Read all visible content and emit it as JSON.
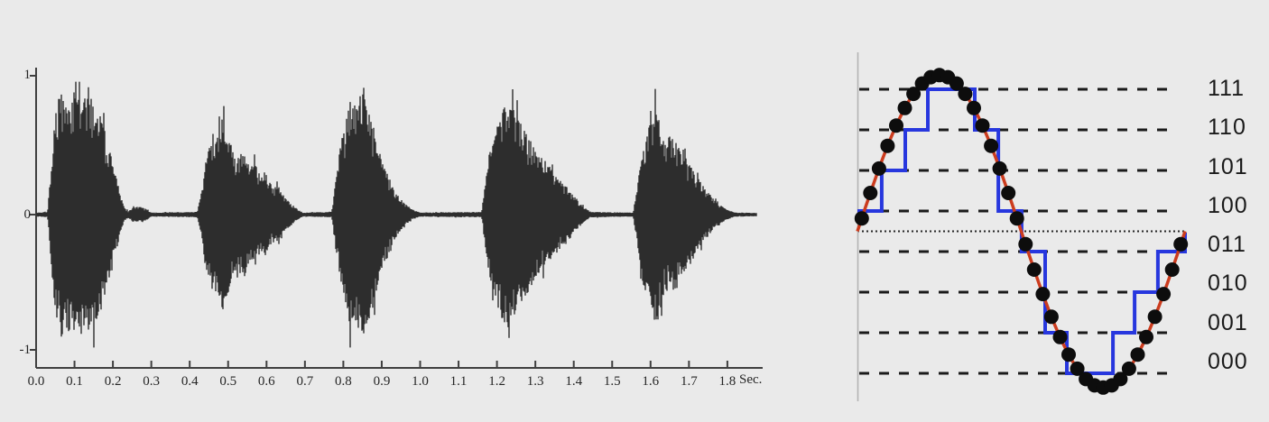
{
  "background": "#eaeaea",
  "chart_data": [
    {
      "id": "speech-waveform",
      "type": "area",
      "title": "",
      "xlabel": "Sec.",
      "ylabel": "",
      "x_unit_label": "Sec.",
      "x_tick_labels": [
        "0.0",
        "0.1",
        "0.2",
        "0.3",
        "0.4",
        "0.5",
        "0.6",
        "0.7",
        "0.8",
        "0.9",
        "1.0",
        "1.1",
        "1.2",
        "1.3",
        "1.4",
        "1.5",
        "1.6",
        "1.7",
        "1.8"
      ],
      "y_tick_labels": [
        "1",
        "0",
        "-1"
      ],
      "ylim": [
        -1,
        1
      ],
      "xlim_seconds": [
        0,
        1.9
      ],
      "grid": false,
      "waveform_color": "#2d2d2d",
      "axis_color": "#3f3f3f",
      "envelope_breakpoints": [
        [
          0.0,
          0.012
        ],
        [
          0.03,
          0.02
        ],
        [
          0.042,
          0.45
        ],
        [
          0.05,
          0.78
        ],
        [
          0.065,
          0.9
        ],
        [
          0.085,
          0.85
        ],
        [
          0.105,
          0.92
        ],
        [
          0.125,
          0.85
        ],
        [
          0.145,
          0.88
        ],
        [
          0.16,
          0.78
        ],
        [
          0.175,
          0.65
        ],
        [
          0.19,
          0.5
        ],
        [
          0.205,
          0.32
        ],
        [
          0.218,
          0.15
        ],
        [
          0.23,
          0.05
        ],
        [
          0.24,
          0.025
        ],
        [
          0.255,
          0.055
        ],
        [
          0.275,
          0.06
        ],
        [
          0.29,
          0.035
        ],
        [
          0.3,
          0.015
        ],
        [
          0.42,
          0.02
        ],
        [
          0.432,
          0.18
        ],
        [
          0.445,
          0.42
        ],
        [
          0.458,
          0.6
        ],
        [
          0.47,
          0.55
        ],
        [
          0.483,
          0.72
        ],
        [
          0.495,
          0.62
        ],
        [
          0.51,
          0.5
        ],
        [
          0.525,
          0.42
        ],
        [
          0.54,
          0.48
        ],
        [
          0.555,
          0.35
        ],
        [
          0.57,
          0.38
        ],
        [
          0.585,
          0.28
        ],
        [
          0.6,
          0.3
        ],
        [
          0.615,
          0.2
        ],
        [
          0.632,
          0.22
        ],
        [
          0.648,
          0.12
        ],
        [
          0.665,
          0.08
        ],
        [
          0.68,
          0.04
        ],
        [
          0.695,
          0.015
        ],
        [
          0.77,
          0.02
        ],
        [
          0.782,
          0.3
        ],
        [
          0.795,
          0.55
        ],
        [
          0.808,
          0.72
        ],
        [
          0.82,
          0.85
        ],
        [
          0.835,
          0.8
        ],
        [
          0.848,
          0.9
        ],
        [
          0.862,
          0.82
        ],
        [
          0.875,
          0.7
        ],
        [
          0.888,
          0.55
        ],
        [
          0.9,
          0.42
        ],
        [
          0.915,
          0.3
        ],
        [
          0.93,
          0.2
        ],
        [
          0.948,
          0.12
        ],
        [
          0.965,
          0.07
        ],
        [
          0.985,
          0.03
        ],
        [
          1.0,
          0.015
        ],
        [
          1.16,
          0.02
        ],
        [
          1.172,
          0.28
        ],
        [
          1.185,
          0.55
        ],
        [
          1.198,
          0.68
        ],
        [
          1.212,
          0.75
        ],
        [
          1.228,
          0.88
        ],
        [
          1.24,
          0.78
        ],
        [
          1.255,
          0.7
        ],
        [
          1.27,
          0.62
        ],
        [
          1.285,
          0.55
        ],
        [
          1.3,
          0.48
        ],
        [
          1.315,
          0.42
        ],
        [
          1.33,
          0.38
        ],
        [
          1.345,
          0.32
        ],
        [
          1.36,
          0.27
        ],
        [
          1.378,
          0.22
        ],
        [
          1.395,
          0.16
        ],
        [
          1.412,
          0.1
        ],
        [
          1.428,
          0.05
        ],
        [
          1.445,
          0.02
        ],
        [
          1.555,
          0.015
        ],
        [
          1.567,
          0.25
        ],
        [
          1.58,
          0.5
        ],
        [
          1.592,
          0.62
        ],
        [
          1.605,
          0.7
        ],
        [
          1.615,
          0.88
        ],
        [
          1.625,
          0.65
        ],
        [
          1.64,
          0.55
        ],
        [
          1.655,
          0.6
        ],
        [
          1.67,
          0.5
        ],
        [
          1.685,
          0.44
        ],
        [
          1.7,
          0.38
        ],
        [
          1.715,
          0.3
        ],
        [
          1.73,
          0.24
        ],
        [
          1.748,
          0.17
        ],
        [
          1.765,
          0.11
        ],
        [
          1.782,
          0.07
        ],
        [
          1.8,
          0.035
        ],
        [
          1.82,
          0.015
        ],
        [
          1.9,
          0.012
        ]
      ]
    },
    {
      "id": "sine-quantization",
      "type": "line",
      "title": "",
      "levels": [
        "111",
        "110",
        "101",
        "100",
        "011",
        "010",
        "001",
        "000"
      ],
      "samples_count": 38,
      "sine": {
        "cycles": 1,
        "amplitude_in_level_units": 3.85,
        "midline_between": [
          "100",
          "011"
        ]
      },
      "sine_color": "#cc3c1e",
      "dot_color": "#0d0d0d",
      "staircase_color": "#2737de",
      "gridline_color": "#1b1b1b",
      "midline_color": "#262626",
      "axis_color": "#b2b2b2",
      "grid": "dashed-levels",
      "legend": "none",
      "staircase_steps": [
        {
          "level": "100",
          "t0": 0.0,
          "t1": 0.074
        },
        {
          "level": "101",
          "t0": 0.074,
          "t1": 0.146
        },
        {
          "level": "110",
          "t0": 0.146,
          "t1": 0.215
        },
        {
          "level": "111",
          "t0": 0.215,
          "t1": 0.358
        },
        {
          "level": "110",
          "t0": 0.358,
          "t1": 0.43
        },
        {
          "level": "100",
          "t0": 0.43,
          "t1": 0.501
        },
        {
          "level": "011",
          "t0": 0.501,
          "t1": 0.573
        },
        {
          "level": "001",
          "t0": 0.573,
          "t1": 0.639
        },
        {
          "level": "000",
          "t0": 0.639,
          "t1": 0.78
        },
        {
          "level": "001",
          "t0": 0.78,
          "t1": 0.846
        },
        {
          "level": "010",
          "t0": 0.846,
          "t1": 0.917
        },
        {
          "level": "011",
          "t0": 0.917,
          "t1": 1.0
        }
      ]
    }
  ]
}
